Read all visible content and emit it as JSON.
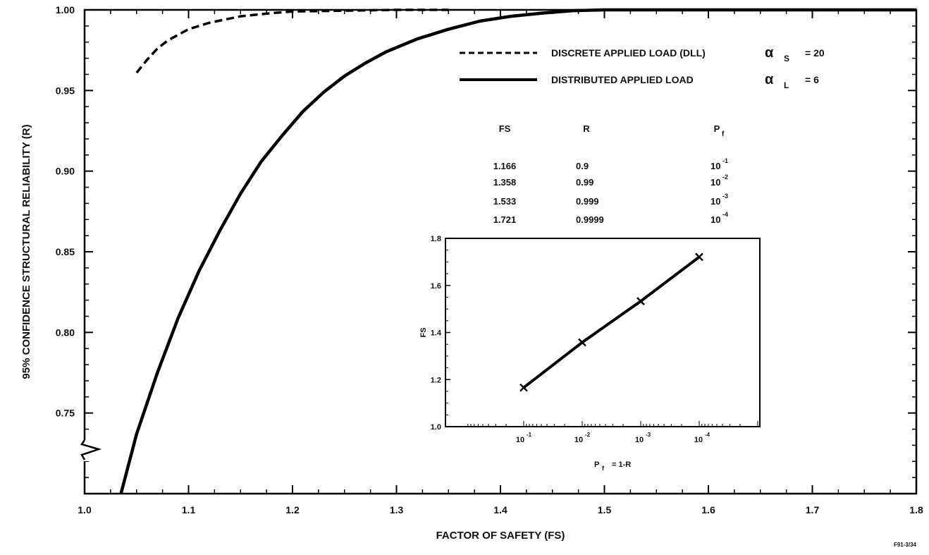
{
  "chart_data": [
    {
      "type": "line",
      "xlabel": "FACTOR OF SAFETY (FS)",
      "ylabel": "95% CONFIDENCE STRUCTURAL RELIABILITY (R)",
      "xlim": [
        1.0,
        1.8
      ],
      "ylim": [
        0.7,
        1.0
      ],
      "x_ticks": [
        "1.0",
        "1.1",
        "1.2",
        "1.3",
        "1.4",
        "1.5",
        "1.6",
        "1.7",
        "1.8"
      ],
      "y_ticks": [
        "0.75",
        "0.80",
        "0.85",
        "0.90",
        "0.95",
        "1.00"
      ],
      "axis_break": "y",
      "grid": false,
      "legend_position": "top-right",
      "series": [
        {
          "name": "DISCRETE APPLIED LOAD (DLL)",
          "style": "dashed",
          "alpha_label": "α",
          "alpha_sub": "S",
          "alpha_value": "= 20",
          "x": [
            1.05,
            1.06,
            1.07,
            1.08,
            1.1,
            1.12,
            1.15,
            1.18,
            1.2,
            1.25,
            1.3,
            1.35
          ],
          "y": [
            0.961,
            0.969,
            0.976,
            0.981,
            0.988,
            0.992,
            0.996,
            0.998,
            0.999,
            0.9995,
            1.0,
            1.0
          ]
        },
        {
          "name": "DISTRIBUTED APPLIED LOAD",
          "style": "solid",
          "alpha_label": "α",
          "alpha_sub": "L",
          "alpha_value": "= 6",
          "x": [
            1.035,
            1.05,
            1.07,
            1.09,
            1.11,
            1.13,
            1.15,
            1.17,
            1.19,
            1.21,
            1.23,
            1.25,
            1.27,
            1.29,
            1.32,
            1.35,
            1.38,
            1.41,
            1.44,
            1.47,
            1.5,
            1.6,
            1.8
          ],
          "y": [
            0.7,
            0.737,
            0.775,
            0.809,
            0.838,
            0.863,
            0.886,
            0.906,
            0.922,
            0.937,
            0.949,
            0.959,
            0.967,
            0.974,
            0.982,
            0.988,
            0.993,
            0.996,
            0.998,
            0.9995,
            1.0,
            1.0,
            1.0
          ]
        }
      ]
    },
    {
      "type": "table",
      "headers": [
        "FS",
        "R",
        "P",
        "f"
      ],
      "rows": [
        {
          "fs": "1.166",
          "r": "0.9",
          "pf_base": "10",
          "pf_exp": "-1"
        },
        {
          "fs": "1.358",
          "r": "0.99",
          "pf_base": "10",
          "pf_exp": "-2"
        },
        {
          "fs": "1.533",
          "r": "0.999",
          "pf_base": "10",
          "pf_exp": "-3"
        },
        {
          "fs": "1.721",
          "r": "0.9999",
          "pf_base": "10",
          "pf_exp": "-4"
        }
      ]
    },
    {
      "type": "line",
      "ylabel": "FS",
      "xlabel_main": "P",
      "xlabel_sub": "f",
      "xlabel_rest": "= 1-R",
      "x_scale": "log",
      "x_direction": "decreasing",
      "ylim": [
        1.0,
        1.8
      ],
      "y_ticks": [
        "1.0",
        "1.2",
        "1.4",
        "1.6",
        "1.8"
      ],
      "x_ticks": [
        {
          "base": "10",
          "exp": "-1",
          "value": 0.1
        },
        {
          "base": "10",
          "exp": "-2",
          "value": 0.01
        },
        {
          "base": "10",
          "exp": "-3",
          "value": 0.001
        },
        {
          "base": "10",
          "exp": "-4",
          "value": 0.0001
        }
      ],
      "marker": "x",
      "series": [
        {
          "x": [
            0.1,
            0.01,
            0.001,
            0.0001
          ],
          "y": [
            1.166,
            1.358,
            1.533,
            1.721
          ]
        }
      ]
    }
  ],
  "figure_id": "F91-3/34"
}
